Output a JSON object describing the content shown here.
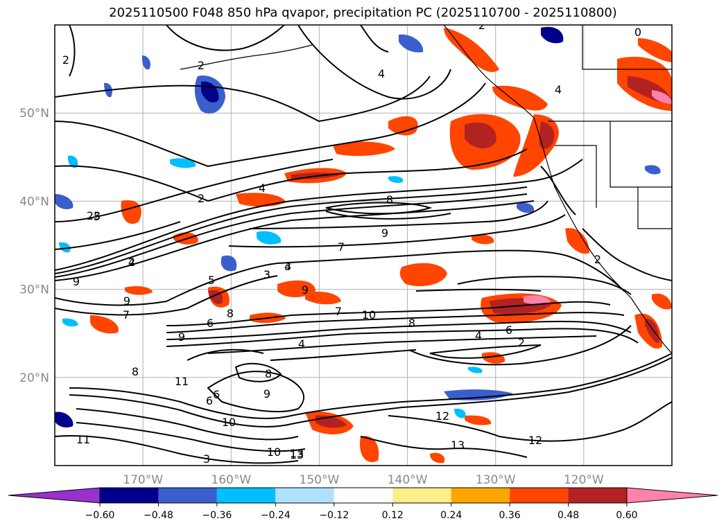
{
  "chart_data": {
    "type": "heatmap",
    "title": "2025110500 F048 850 hPa qvapor, precipitation PC (2025110700 - 2025110800)",
    "x_ticks": [
      "170°W",
      "160°W",
      "150°W",
      "140°W",
      "130°W",
      "120°W"
    ],
    "y_ticks": [
      "50°N",
      "40°N",
      "30°N",
      "20°N"
    ],
    "xlim": [
      -180,
      -110
    ],
    "ylim": [
      10,
      60
    ],
    "grid": true,
    "colorbar": {
      "levels": [
        -0.6,
        -0.48,
        -0.36,
        -0.24,
        -0.12,
        0.12,
        0.24,
        0.36,
        0.48,
        0.6
      ],
      "tick_labels": [
        "−0.60",
        "−0.48",
        "−0.36",
        "−0.24",
        "−0.12",
        "0.12",
        "0.24",
        "0.36",
        "0.48",
        "0.60"
      ],
      "colors": [
        "#9932cc",
        "#00008b",
        "#3a5fcd",
        "#00bfff",
        "#b0e2ff",
        "#ffffff",
        "#ffec8b",
        "#ffa500",
        "#ff4500",
        "#b22222",
        "#ff82ab"
      ],
      "extend": "both"
    },
    "contour_labels": [
      "2",
      "2",
      "4",
      "2",
      "0",
      "4",
      "4",
      "2",
      "5",
      "2",
      "3",
      "3",
      "8",
      "9",
      "23",
      "7",
      "4",
      "4",
      "3",
      "9",
      "9",
      "7",
      "9",
      "7",
      "8",
      "10",
      "6",
      "8",
      "5",
      "6",
      "2",
      "4",
      "4",
      "9",
      "8",
      "8",
      "11",
      "6",
      "6",
      "10",
      "10",
      "12",
      "13",
      "13",
      "12",
      "11",
      "13",
      "3",
      "2",
      "9"
    ]
  }
}
